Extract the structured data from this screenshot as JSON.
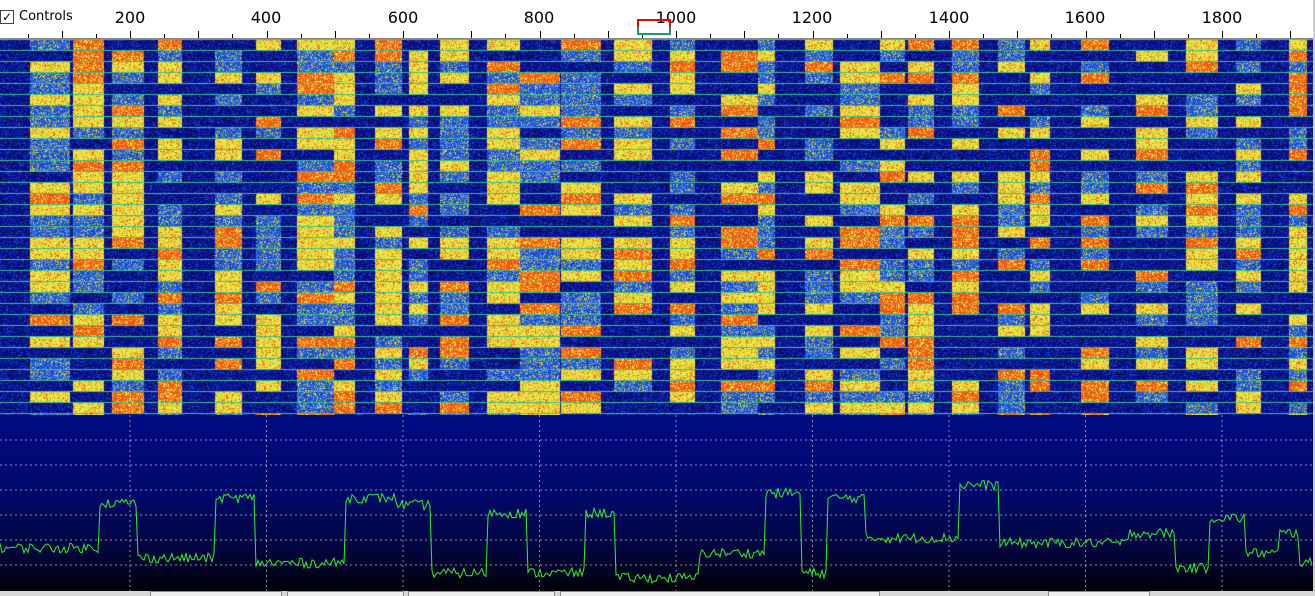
{
  "controls": {
    "label": "Controls",
    "checked_mark": "✓"
  },
  "ruler": {
    "labels": [
      "200",
      "400",
      "600",
      "800",
      "1000",
      "1200",
      "1400",
      "1600",
      "1800"
    ],
    "min_hz": 0,
    "max_hz": 1920
  },
  "markers": {
    "rx_hz": 975,
    "tx_hz": 975
  },
  "colors": {
    "waterfall_low": "#08108a",
    "waterfall_mid": "#2a64e0",
    "waterfall_high": "#d8d830",
    "waterfall_peak": "#f05a10",
    "spectrum_trace": "#30f030",
    "grid": "#c8c8c8"
  },
  "icons": {
    "check": "check-icon",
    "rx_marker": "rx-frequency-marker-icon",
    "tx_marker": "tx-frequency-marker-icon"
  }
}
